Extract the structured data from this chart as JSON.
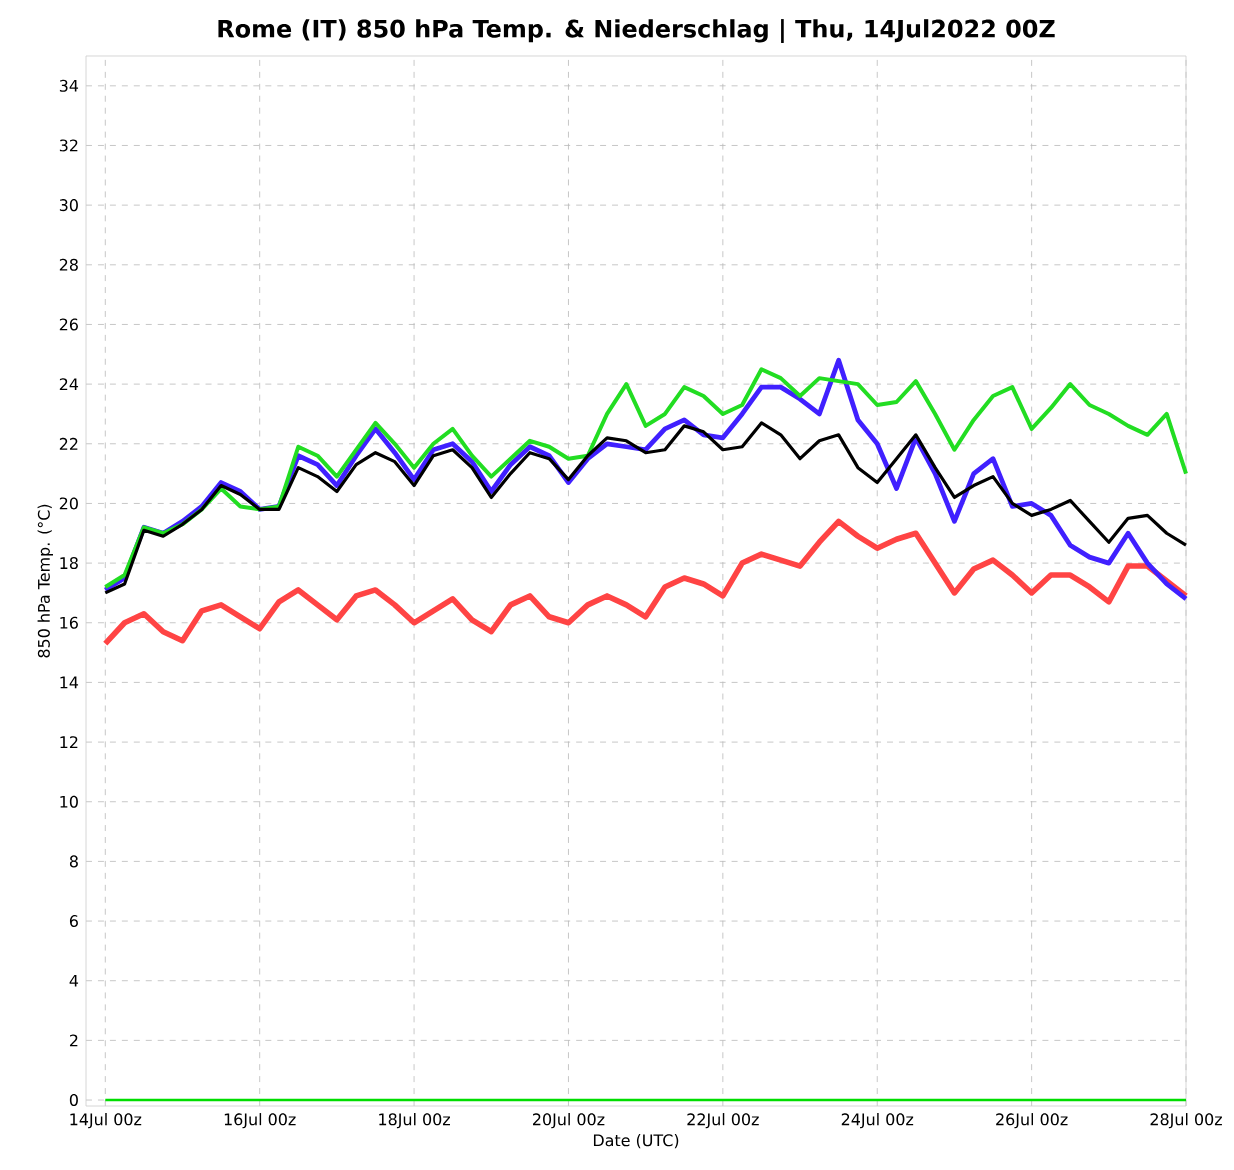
{
  "chart_data": {
    "type": "line",
    "title": "Rome  (IT)  850 hPa Temp. & Niederschlag | Thu, 14Jul2022 00Z",
    "xlabel": "Date (UTC)",
    "ylabel": "850 hPa Temp. (°C)",
    "x": [
      "2022-07-14T00:00",
      "2022-07-14T06:00",
      "2022-07-14T12:00",
      "2022-07-14T18:00",
      "2022-07-15T00:00",
      "2022-07-15T06:00",
      "2022-07-15T12:00",
      "2022-07-15T18:00",
      "2022-07-16T00:00",
      "2022-07-16T06:00",
      "2022-07-16T12:00",
      "2022-07-16T18:00",
      "2022-07-17T00:00",
      "2022-07-17T06:00",
      "2022-07-17T12:00",
      "2022-07-17T18:00",
      "2022-07-18T00:00",
      "2022-07-18T06:00",
      "2022-07-18T12:00",
      "2022-07-18T18:00",
      "2022-07-19T00:00",
      "2022-07-19T06:00",
      "2022-07-19T12:00",
      "2022-07-19T18:00",
      "2022-07-20T00:00",
      "2022-07-20T06:00",
      "2022-07-20T12:00",
      "2022-07-20T18:00",
      "2022-07-21T00:00",
      "2022-07-21T06:00",
      "2022-07-21T12:00",
      "2022-07-21T18:00",
      "2022-07-22T00:00",
      "2022-07-22T06:00",
      "2022-07-22T12:00",
      "2022-07-22T18:00",
      "2022-07-23T00:00",
      "2022-07-23T06:00",
      "2022-07-23T12:00",
      "2022-07-23T18:00",
      "2022-07-24T00:00",
      "2022-07-24T06:00",
      "2022-07-24T12:00",
      "2022-07-24T18:00",
      "2022-07-25T00:00",
      "2022-07-25T06:00",
      "2022-07-25T12:00",
      "2022-07-25T18:00",
      "2022-07-26T00:00",
      "2022-07-26T06:00",
      "2022-07-26T12:00",
      "2022-07-26T18:00",
      "2022-07-27T00:00",
      "2022-07-27T06:00",
      "2022-07-27T12:00",
      "2022-07-27T18:00",
      "2022-07-28T00:00"
    ],
    "series": [
      {
        "color": "#ff4444",
        "values": [
          15.3,
          16.0,
          16.3,
          15.7,
          15.4,
          16.4,
          16.6,
          16.2,
          15.8,
          16.7,
          17.1,
          16.6,
          16.1,
          16.9,
          17.1,
          16.6,
          16.0,
          16.4,
          16.8,
          16.1,
          15.7,
          16.6,
          16.9,
          16.2,
          16.0,
          16.6,
          16.9,
          16.6,
          16.2,
          17.2,
          17.5,
          17.3,
          16.9,
          18.0,
          18.3,
          18.1,
          17.9,
          18.7,
          19.4,
          18.9,
          18.5,
          18.8,
          19.0,
          18.0,
          17.0,
          17.8,
          18.1,
          17.6,
          17.0,
          17.6,
          17.6,
          17.2,
          16.7,
          17.9,
          17.9,
          17.4,
          16.9
        ]
      },
      {
        "color": "#4020ff",
        "values": [
          17.1,
          17.5,
          19.2,
          19.0,
          19.4,
          19.9,
          20.7,
          20.4,
          19.8,
          19.9,
          21.6,
          21.3,
          20.6,
          21.6,
          22.5,
          21.7,
          20.8,
          21.8,
          22.0,
          21.4,
          20.4,
          21.3,
          21.9,
          21.6,
          20.7,
          21.5,
          22.0,
          21.9,
          21.8,
          22.5,
          22.8,
          22.3,
          22.2,
          23.0,
          23.9,
          23.9,
          23.5,
          23.0,
          24.8,
          22.8,
          22.0,
          20.5,
          22.2,
          21.0,
          19.4,
          21.0,
          21.5,
          19.9,
          20.0,
          19.6,
          18.6,
          18.2,
          18.0,
          19.0,
          18.0,
          17.3,
          16.8
        ]
      },
      {
        "color": "#22dd22",
        "values": [
          17.2,
          17.6,
          19.2,
          19.0,
          19.3,
          19.8,
          20.5,
          19.9,
          19.8,
          19.9,
          21.9,
          21.6,
          20.9,
          21.8,
          22.7,
          22.0,
          21.2,
          22.0,
          22.5,
          21.6,
          20.9,
          21.5,
          22.1,
          21.9,
          21.5,
          21.6,
          23.0,
          24.0,
          22.6,
          23.0,
          23.9,
          23.6,
          23.0,
          23.3,
          24.5,
          24.2,
          23.6,
          24.2,
          24.1,
          24.0,
          23.3,
          23.4,
          24.1,
          23.0,
          21.8,
          22.8,
          23.6,
          23.9,
          22.5,
          23.2,
          24.0,
          23.3,
          23.0,
          22.6,
          22.3,
          23.0,
          21.0
        ]
      },
      {
        "color": "#000000",
        "values": [
          17.0,
          17.3,
          19.1,
          18.9,
          19.3,
          19.8,
          20.6,
          20.3,
          19.8,
          19.8,
          21.2,
          20.9,
          20.4,
          21.3,
          21.7,
          21.4,
          20.6,
          21.6,
          21.8,
          21.2,
          20.2,
          21.0,
          21.7,
          21.5,
          20.8,
          21.6,
          22.2,
          22.1,
          21.7,
          21.8,
          22.6,
          22.4,
          21.8,
          21.9,
          22.7,
          22.3,
          21.5,
          22.1,
          22.3,
          21.2,
          20.7,
          21.5,
          22.3,
          21.2,
          20.2,
          20.6,
          20.9,
          20.0,
          19.6,
          19.8,
          20.1,
          19.4,
          18.7,
          19.5,
          19.6,
          19.0,
          18.6
        ]
      },
      {
        "color": "#00dd00",
        "values": [
          0,
          0,
          0,
          0,
          0,
          0,
          0,
          0,
          0,
          0,
          0,
          0,
          0,
          0,
          0,
          0,
          0,
          0,
          0,
          0,
          0,
          0,
          0,
          0,
          0,
          0,
          0,
          0,
          0,
          0,
          0,
          0,
          0,
          0,
          0,
          0,
          0,
          0,
          0,
          0,
          0,
          0,
          0,
          0,
          0,
          0,
          0,
          0,
          0,
          0,
          0,
          0,
          0,
          0,
          0,
          0,
          0
        ]
      }
    ],
    "xlim": [
      "2022-07-13T18:00",
      "2022-07-28T00:00"
    ],
    "ylim": [
      -0.2,
      35
    ],
    "xticks": [
      {
        "value": "2022-07-14T00:00",
        "label": "14Jul 00z"
      },
      {
        "value": "2022-07-16T00:00",
        "label": "16Jul 00z"
      },
      {
        "value": "2022-07-18T00:00",
        "label": "18Jul 00z"
      },
      {
        "value": "2022-07-20T00:00",
        "label": "20Jul 00z"
      },
      {
        "value": "2022-07-22T00:00",
        "label": "22Jul 00z"
      },
      {
        "value": "2022-07-24T00:00",
        "label": "24Jul 00z"
      },
      {
        "value": "2022-07-26T00:00",
        "label": "26Jul 00z"
      },
      {
        "value": "2022-07-28T00:00",
        "label": "28Jul 00z"
      }
    ],
    "yticks": [
      0,
      2,
      4,
      6,
      8,
      10,
      12,
      14,
      16,
      18,
      20,
      22,
      24,
      26,
      28,
      30,
      32,
      34
    ],
    "grid": true,
    "marker": "none",
    "line_style": "solid"
  }
}
